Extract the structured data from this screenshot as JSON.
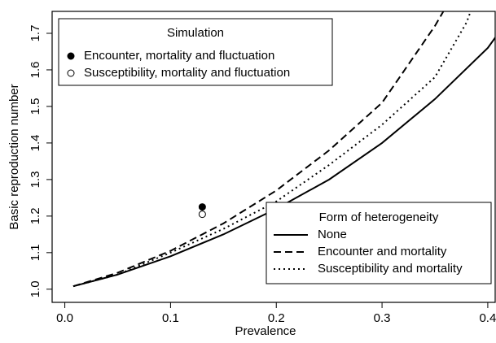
{
  "chart_data": {
    "type": "line",
    "xlabel": "Prevalence",
    "ylabel": "Basic reproduction number",
    "xlim": [
      -0.012,
      0.407
    ],
    "ylim": [
      0.964,
      1.76
    ],
    "xticks": [
      {
        "value": 0,
        "label": "0.0"
      },
      0.1,
      0.2,
      0.3,
      0.4
    ],
    "yticks": [
      {
        "value": 1,
        "label": "1.0"
      },
      1.1,
      1.2,
      1.3,
      1.4,
      1.5,
      1.6,
      1.7
    ],
    "legend_title": "Form of heterogeneity",
    "legend_loc": "lower right",
    "series": [
      {
        "name": "None",
        "style": "solid",
        "color": "#000000",
        "x": [
          0.008,
          0.05,
          0.1,
          0.15,
          0.2,
          0.25,
          0.3,
          0.35,
          0.4,
          0.41
        ],
        "values": [
          1.008,
          1.04,
          1.09,
          1.15,
          1.22,
          1.3,
          1.4,
          1.52,
          1.66,
          1.7
        ]
      },
      {
        "name": "Encounter and mortality",
        "style": "dashed",
        "color": "#000000",
        "x": [
          0.008,
          0.05,
          0.1,
          0.15,
          0.2,
          0.25,
          0.3,
          0.35,
          0.36
        ],
        "values": [
          1.008,
          1.045,
          1.105,
          1.18,
          1.27,
          1.38,
          1.51,
          1.72,
          1.77
        ]
      },
      {
        "name": "Susceptibility and mortality",
        "style": "dotted",
        "color": "#000000",
        "x": [
          0.008,
          0.05,
          0.1,
          0.15,
          0.2,
          0.25,
          0.3,
          0.35,
          0.38,
          0.385
        ],
        "values": [
          1.008,
          1.04,
          1.1,
          1.165,
          1.24,
          1.34,
          1.45,
          1.58,
          1.73,
          1.77
        ]
      }
    ],
    "points_title": "Simulation",
    "points_legend_loc": "upper left",
    "points": [
      {
        "name": "Encounter, mortality and fluctuation",
        "filled": true,
        "x": [
          0.13
        ],
        "values": [
          1.225
        ]
      },
      {
        "name": "Susceptibility, mortality and fluctuation",
        "filled": false,
        "x": [
          0.13
        ],
        "values": [
          1.205
        ]
      }
    ]
  }
}
